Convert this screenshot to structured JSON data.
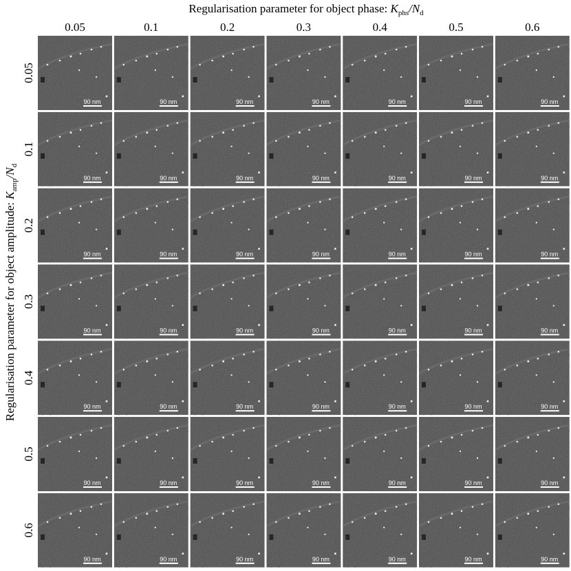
{
  "figure": {
    "x_title_text": "Regularisation parameter for object phase:",
    "x_title_math": [
      "K",
      "phs",
      "/N",
      "d"
    ],
    "y_title_text": "Regularisation parameter for object amplitude:",
    "y_title_math": [
      "K",
      "amp",
      "/N",
      "d"
    ],
    "columns": [
      "0.05",
      "0.1",
      "0.2",
      "0.3",
      "0.4",
      "0.5",
      "0.6"
    ],
    "rows": [
      "0.05",
      "0.1",
      "0.2",
      "0.3",
      "0.4",
      "0.5",
      "0.6"
    ],
    "scale_bars": [
      [
        "90 nm",
        "90 nm",
        "90 nm",
        "90 nm",
        "90 nm",
        "90 nm",
        "90 nm"
      ],
      [
        "90 nm",
        "90 nm",
        "90 nm",
        "90 nm",
        "90 nm",
        "90 nm",
        "90 nm"
      ],
      [
        "90 nm",
        "90 nm",
        "90 nm",
        "90 nm",
        "90 nm",
        "90 nm",
        "90 nm"
      ],
      [
        "90 nm",
        "90 nm",
        "90 nm",
        "90 nm",
        "90 nm",
        "90 nm",
        "90 nm"
      ],
      [
        "90 nm",
        "90 nm",
        "90 nm",
        "90 nm",
        "90 nm",
        "90 nm",
        "90 nm"
      ],
      [
        "90 nm",
        "90 nm",
        "90 nm",
        "90 nm",
        "90 nm",
        "90 nm",
        "90 nm"
      ],
      [
        "90 nm",
        "90 nm",
        "90 nm",
        "90 nm",
        "90 nm",
        "90 nm",
        "90 nm"
      ]
    ]
  }
}
